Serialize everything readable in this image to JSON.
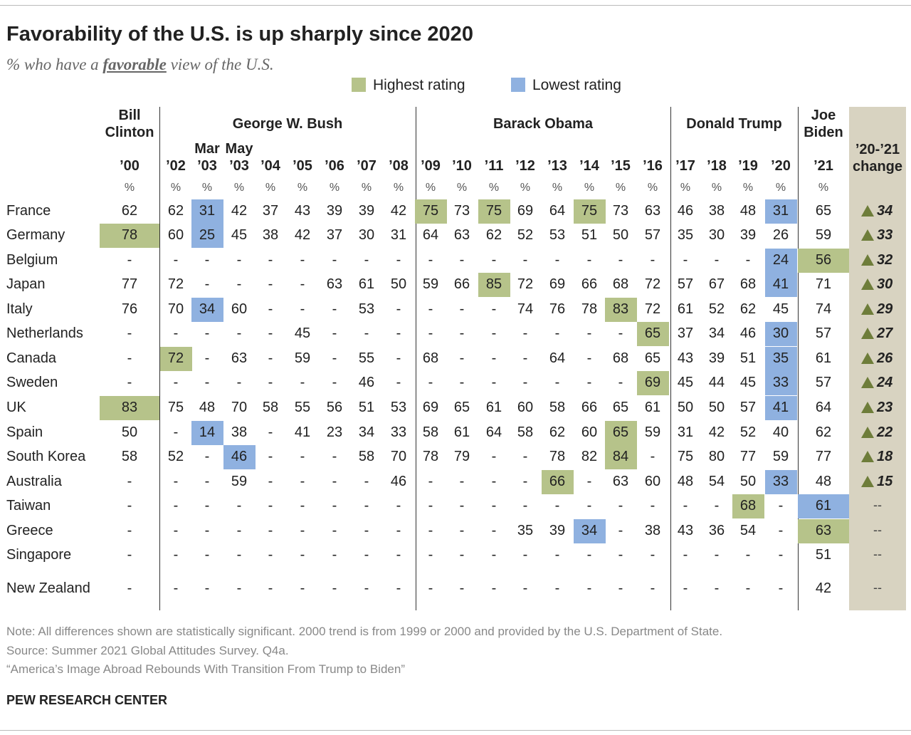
{
  "header": {
    "title": "Favorability of the U.S. is up sharply since 2020",
    "subtitle": {
      "before": "% who have a",
      "emphasis": "favorable",
      "after": "view of the U.S."
    }
  },
  "legend": {
    "highest": {
      "label": "Highest rating",
      "color": "#b6c38a"
    },
    "lowest": {
      "label": "Lowest rating",
      "color": "#8fb1e0"
    }
  },
  "table": {
    "unit": "%",
    "change_header": "’20-’21 change",
    "presidents": [
      {
        "name": "Bill Clinton",
        "columns": [
          {
            "year": "’00"
          }
        ]
      },
      {
        "name": "George W. Bush",
        "columns": [
          {
            "year": "’02"
          },
          {
            "month": "Mar",
            "year": "’03"
          },
          {
            "month": "May",
            "year": "’03"
          },
          {
            "year": "’04"
          },
          {
            "year": "’05"
          },
          {
            "year": "’06"
          },
          {
            "year": "’07"
          },
          {
            "year": "’08"
          }
        ]
      },
      {
        "name": "Barack Obama",
        "columns": [
          {
            "year": "’09"
          },
          {
            "year": "’10"
          },
          {
            "year": "’11"
          },
          {
            "year": "’12"
          },
          {
            "year": "’13"
          },
          {
            "year": "’14"
          },
          {
            "year": "’15"
          },
          {
            "year": "’16"
          }
        ]
      },
      {
        "name": "Donald Trump",
        "columns": [
          {
            "year": "’17"
          },
          {
            "year": "’18"
          },
          {
            "year": "’19"
          },
          {
            "year": "’20"
          }
        ]
      },
      {
        "name": "Joe Biden",
        "columns": [
          {
            "year": "’21"
          }
        ]
      }
    ],
    "rows": [
      {
        "country": "France",
        "values": [
          62,
          62,
          {
            "value": 31,
            "highlight": "lowest"
          },
          42,
          37,
          43,
          39,
          39,
          42,
          {
            "value": 75,
            "highlight": "highest"
          },
          73,
          {
            "value": 75,
            "highlight": "highest"
          },
          69,
          64,
          {
            "value": 75,
            "highlight": "highest"
          },
          73,
          63,
          46,
          38,
          48,
          {
            "value": 31,
            "highlight": "lowest"
          },
          65
        ],
        "change": 34
      },
      {
        "country": "Germany",
        "values": [
          {
            "value": 78,
            "highlight": "highest"
          },
          60,
          {
            "value": 25,
            "highlight": "lowest"
          },
          45,
          38,
          42,
          37,
          30,
          31,
          64,
          63,
          62,
          52,
          53,
          51,
          50,
          57,
          35,
          30,
          39,
          26,
          59
        ],
        "change": 33
      },
      {
        "country": "Belgium",
        "values": [
          "-",
          "-",
          "-",
          "-",
          "-",
          "-",
          "-",
          "-",
          "-",
          "-",
          "-",
          "-",
          "-",
          "-",
          "-",
          "-",
          "-",
          "-",
          "-",
          "-",
          {
            "value": 24,
            "highlight": "lowest"
          },
          {
            "value": 56,
            "highlight": "highest"
          }
        ],
        "change": 32
      },
      {
        "country": "Japan",
        "values": [
          77,
          72,
          "-",
          "-",
          "-",
          "-",
          63,
          61,
          50,
          59,
          66,
          {
            "value": 85,
            "highlight": "highest"
          },
          72,
          69,
          66,
          68,
          72,
          57,
          67,
          68,
          {
            "value": 41,
            "highlight": "lowest"
          },
          71
        ],
        "change": 30
      },
      {
        "country": "Italy",
        "values": [
          76,
          70,
          {
            "value": 34,
            "highlight": "lowest"
          },
          60,
          "-",
          "-",
          "-",
          53,
          "-",
          "-",
          "-",
          "-",
          74,
          76,
          78,
          {
            "value": 83,
            "highlight": "highest"
          },
          72,
          61,
          52,
          62,
          45,
          74
        ],
        "change": 29
      },
      {
        "country": "Netherlands",
        "values": [
          "-",
          "-",
          "-",
          "-",
          "-",
          45,
          "-",
          "-",
          "-",
          "-",
          "-",
          "-",
          "-",
          "-",
          "-",
          "-",
          {
            "value": 65,
            "highlight": "highest"
          },
          37,
          34,
          46,
          {
            "value": 30,
            "highlight": "lowest"
          },
          57
        ],
        "change": 27
      },
      {
        "country": "Canada",
        "values": [
          "-",
          {
            "value": 72,
            "highlight": "highest"
          },
          "-",
          63,
          "-",
          59,
          "-",
          55,
          "-",
          68,
          "-",
          "-",
          "-",
          64,
          "-",
          68,
          65,
          43,
          39,
          51,
          {
            "value": 35,
            "highlight": "lowest"
          },
          61
        ],
        "change": 26
      },
      {
        "country": "Sweden",
        "values": [
          "-",
          "-",
          "-",
          "-",
          "-",
          "-",
          "-",
          46,
          "-",
          "-",
          "-",
          "-",
          "-",
          "-",
          "-",
          "-",
          {
            "value": 69,
            "highlight": "highest"
          },
          45,
          44,
          45,
          {
            "value": 33,
            "highlight": "lowest"
          },
          57
        ],
        "change": 24
      },
      {
        "country": "UK",
        "values": [
          {
            "value": 83,
            "highlight": "highest"
          },
          75,
          48,
          70,
          58,
          55,
          56,
          51,
          53,
          69,
          65,
          61,
          60,
          58,
          66,
          65,
          61,
          50,
          50,
          57,
          {
            "value": 41,
            "highlight": "lowest"
          },
          64
        ],
        "change": 23
      },
      {
        "country": "Spain",
        "values": [
          50,
          "-",
          {
            "value": 14,
            "highlight": "lowest"
          },
          38,
          "-",
          41,
          23,
          34,
          33,
          58,
          61,
          64,
          58,
          62,
          60,
          {
            "value": 65,
            "highlight": "highest"
          },
          59,
          31,
          42,
          52,
          40,
          62
        ],
        "change": 22
      },
      {
        "country": "South Korea",
        "values": [
          58,
          52,
          "-",
          {
            "value": 46,
            "highlight": "lowest"
          },
          "-",
          "-",
          "-",
          58,
          70,
          78,
          79,
          "-",
          "-",
          78,
          82,
          {
            "value": 84,
            "highlight": "highest"
          },
          "-",
          75,
          80,
          77,
          59,
          77
        ],
        "change": 18
      },
      {
        "country": "Australia",
        "values": [
          "-",
          "-",
          "-",
          59,
          "-",
          "-",
          "-",
          "-",
          46,
          "-",
          "-",
          "-",
          "-",
          {
            "value": 66,
            "highlight": "highest"
          },
          "-",
          63,
          60,
          48,
          54,
          50,
          {
            "value": 33,
            "highlight": "lowest"
          },
          48
        ],
        "change": 15
      },
      {
        "country": "Taiwan",
        "values": [
          "-",
          "-",
          "-",
          "-",
          "-",
          "-",
          "-",
          "-",
          "-",
          "-",
          "-",
          "-",
          "-",
          "-",
          "-",
          "-",
          "-",
          "-",
          "-",
          {
            "value": 68,
            "highlight": "highest"
          },
          "-",
          {
            "value": 61,
            "highlight": "lowest"
          }
        ],
        "change": "--"
      },
      {
        "country": "Greece",
        "values": [
          "-",
          "-",
          "-",
          "-",
          "-",
          "-",
          "-",
          "-",
          "-",
          "-",
          "-",
          "-",
          35,
          39,
          {
            "value": 34,
            "highlight": "lowest"
          },
          "-",
          38,
          43,
          36,
          54,
          "-",
          {
            "value": 63,
            "highlight": "highest"
          }
        ],
        "change": "--"
      },
      {
        "country": "Singapore",
        "values": [
          "-",
          "-",
          "-",
          "-",
          "-",
          "-",
          "-",
          "-",
          "-",
          "-",
          "-",
          "-",
          "-",
          "-",
          "-",
          "-",
          "-",
          "-",
          "-",
          "-",
          "-",
          51
        ],
        "change": "--"
      },
      {
        "country": "New Zealand",
        "values": [
          "-",
          "-",
          "-",
          "-",
          "-",
          "-",
          "-",
          "-",
          "-",
          "-",
          "-",
          "-",
          "-",
          "-",
          "-",
          "-",
          "-",
          "-",
          "-",
          "-",
          "-",
          42
        ],
        "change": "--"
      }
    ]
  },
  "notes": [
    "Note: All differences shown are statistically significant. 2000 trend is from 1999 or 2000 and provided by the U.S. Department of State.",
    "Source: Summer 2021 Global Attitudes Survey. Q4a.",
    "“America’s Image Abroad Rebounds With Transition From Trump to Biden”"
  ],
  "footer": "PEW RESEARCH CENTER"
}
